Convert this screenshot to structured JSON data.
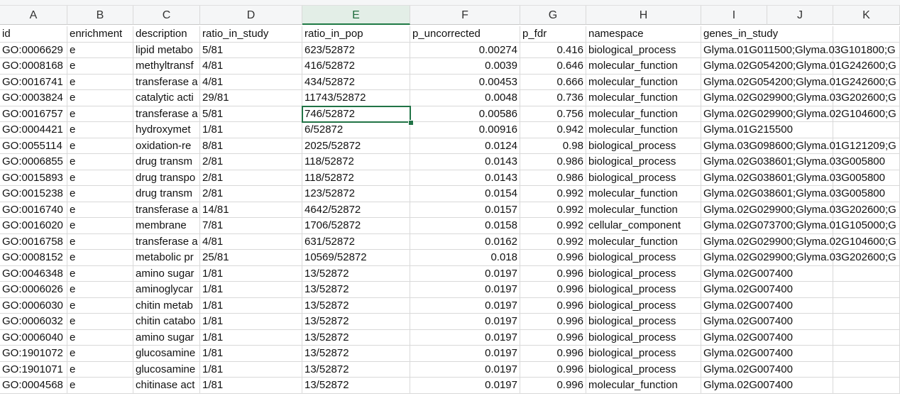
{
  "column_letters": [
    "A",
    "B",
    "C",
    "D",
    "E",
    "F",
    "G",
    "H",
    "I",
    "J",
    "K"
  ],
  "active_column": "E",
  "active_cell": "E5",
  "headers": [
    "id",
    "enrichment",
    "description",
    "ratio_in_study",
    "ratio_in_pop",
    "p_uncorrected",
    "p_fdr",
    "namespace",
    "genes_in_study"
  ],
  "rows": [
    [
      "GO:0006629",
      "e",
      "lipid metabo",
      "5/81",
      "623/52872",
      "0.00274",
      "0.416",
      "biological_process",
      "Glyma.01G011500;Glyma.03G101800;G"
    ],
    [
      "GO:0008168",
      "e",
      "methyltransf",
      "4/81",
      "416/52872",
      "0.0039",
      "0.646",
      "molecular_function",
      "Glyma.02G054200;Glyma.01G242600;G"
    ],
    [
      "GO:0016741",
      "e",
      "transferase a",
      "4/81",
      "434/52872",
      "0.00453",
      "0.666",
      "molecular_function",
      "Glyma.02G054200;Glyma.01G242600;G"
    ],
    [
      "GO:0003824",
      "e",
      "catalytic acti",
      "29/81",
      "11743/52872",
      "0.0048",
      "0.736",
      "molecular_function",
      "Glyma.02G029900;Glyma.03G202600;G"
    ],
    [
      "GO:0016757",
      "e",
      "transferase a",
      "5/81",
      "746/52872",
      "0.00586",
      "0.756",
      "molecular_function",
      "Glyma.02G029900;Glyma.02G104600;G"
    ],
    [
      "GO:0004421",
      "e",
      "hydroxymet",
      "1/81",
      "6/52872",
      "0.00916",
      "0.942",
      "molecular_function",
      "Glyma.01G215500"
    ],
    [
      "GO:0055114",
      "e",
      "oxidation-re",
      "8/81",
      "2025/52872",
      "0.0124",
      "0.98",
      "biological_process",
      "Glyma.03G098600;Glyma.01G121209;G"
    ],
    [
      "GO:0006855",
      "e",
      "drug transm",
      "2/81",
      "118/52872",
      "0.0143",
      "0.986",
      "biological_process",
      "Glyma.02G038601;Glyma.03G005800"
    ],
    [
      "GO:0015893",
      "e",
      "drug transpo",
      "2/81",
      "118/52872",
      "0.0143",
      "0.986",
      "biological_process",
      "Glyma.02G038601;Glyma.03G005800"
    ],
    [
      "GO:0015238",
      "e",
      "drug transm",
      "2/81",
      "123/52872",
      "0.0154",
      "0.992",
      "molecular_function",
      "Glyma.02G038601;Glyma.03G005800"
    ],
    [
      "GO:0016740",
      "e",
      "transferase a",
      "14/81",
      "4642/52872",
      "0.0157",
      "0.992",
      "molecular_function",
      "Glyma.02G029900;Glyma.03G202600;G"
    ],
    [
      "GO:0016020",
      "e",
      "membrane",
      "7/81",
      "1706/52872",
      "0.0158",
      "0.992",
      "cellular_component",
      "Glyma.02G073700;Glyma.01G105000;G"
    ],
    [
      "GO:0016758",
      "e",
      "transferase a",
      "4/81",
      "631/52872",
      "0.0162",
      "0.992",
      "molecular_function",
      "Glyma.02G029900;Glyma.02G104600;G"
    ],
    [
      "GO:0008152",
      "e",
      "metabolic pr",
      "25/81",
      "10569/52872",
      "0.018",
      "0.996",
      "biological_process",
      "Glyma.02G029900;Glyma.03G202600;G"
    ],
    [
      "GO:0046348",
      "e",
      "amino sugar",
      "1/81",
      "13/52872",
      "0.0197",
      "0.996",
      "biological_process",
      "Glyma.02G007400"
    ],
    [
      "GO:0006026",
      "e",
      "aminoglycar",
      "1/81",
      "13/52872",
      "0.0197",
      "0.996",
      "biological_process",
      "Glyma.02G007400"
    ],
    [
      "GO:0006030",
      "e",
      "chitin metab",
      "1/81",
      "13/52872",
      "0.0197",
      "0.996",
      "biological_process",
      "Glyma.02G007400"
    ],
    [
      "GO:0006032",
      "e",
      "chitin catabo",
      "1/81",
      "13/52872",
      "0.0197",
      "0.996",
      "biological_process",
      "Glyma.02G007400"
    ],
    [
      "GO:0006040",
      "e",
      "amino sugar",
      "1/81",
      "13/52872",
      "0.0197",
      "0.996",
      "biological_process",
      "Glyma.02G007400"
    ],
    [
      "GO:1901072",
      "e",
      "glucosamine",
      "1/81",
      "13/52872",
      "0.0197",
      "0.996",
      "biological_process",
      "Glyma.02G007400"
    ],
    [
      "GO:1901071",
      "e",
      "glucosamine",
      "1/81",
      "13/52872",
      "0.0197",
      "0.996",
      "biological_process",
      "Glyma.02G007400"
    ],
    [
      "GO:0004568",
      "e",
      "chitinase act",
      "1/81",
      "13/52872",
      "0.0197",
      "0.996",
      "molecular_function",
      "Glyma.02G007400"
    ]
  ]
}
